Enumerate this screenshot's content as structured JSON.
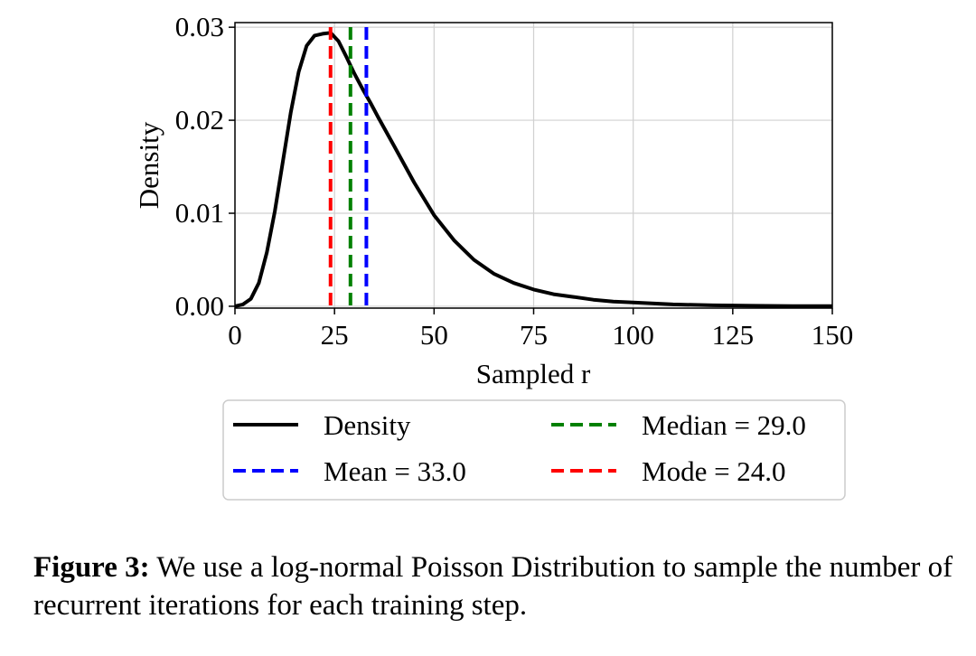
{
  "chart_data": {
    "type": "line",
    "xlabel": "Sampled r",
    "ylabel": "Density",
    "xlim": [
      0,
      150
    ],
    "ylim": [
      -0.0002,
      0.0305
    ],
    "xticks": [
      0,
      25,
      50,
      75,
      100,
      125,
      150
    ],
    "xtick_labels": [
      "0",
      "25",
      "50",
      "75",
      "100",
      "125",
      "150"
    ],
    "yticks": [
      0.0,
      0.01,
      0.02,
      0.03
    ],
    "ytick_labels": [
      "0.00",
      "0.01",
      "0.02",
      "0.03"
    ],
    "grid": true,
    "legend_placement": "below",
    "series": [
      {
        "name": "Density",
        "color": "#000000",
        "style": "solid",
        "x": [
          0,
          2,
          4,
          6,
          8,
          10,
          12,
          14,
          16,
          18,
          20,
          22,
          24,
          26,
          28,
          30,
          32,
          34,
          36,
          40,
          45,
          50,
          55,
          60,
          65,
          70,
          75,
          80,
          85,
          90,
          95,
          100,
          110,
          120,
          130,
          140,
          150
        ],
        "y": [
          0.0,
          0.0002,
          0.0008,
          0.0025,
          0.0058,
          0.0102,
          0.0155,
          0.0208,
          0.0252,
          0.028,
          0.0291,
          0.0293,
          0.0294,
          0.0285,
          0.0268,
          0.025,
          0.0234,
          0.0219,
          0.0203,
          0.0172,
          0.0133,
          0.0098,
          0.0071,
          0.005,
          0.0035,
          0.0025,
          0.0018,
          0.0013,
          0.001,
          0.0007,
          0.0005,
          0.0004,
          0.0002,
          0.0001,
          5e-05,
          2e-05,
          1e-05
        ]
      },
      {
        "name": "Mean = 33.0",
        "color": "#0000ff",
        "style": "dashed",
        "x": 33.0
      },
      {
        "name": "Median = 29.0",
        "color": "#008000",
        "style": "dashed",
        "x": 29.0
      },
      {
        "name": "Mode = 24.0",
        "color": "#ff0000",
        "style": "dashed",
        "x": 24.0
      }
    ],
    "legend": [
      {
        "label": "Density",
        "color": "#000000",
        "style": "solid"
      },
      {
        "label": "Mean = 33.0",
        "color": "#0000ff",
        "style": "dashed"
      },
      {
        "label": "Median = 29.0",
        "color": "#008000",
        "style": "dashed"
      },
      {
        "label": "Mode = 24.0",
        "color": "#ff0000",
        "style": "dashed"
      }
    ]
  },
  "caption": {
    "label": "Figure 3:",
    "text": "We use a log-normal Poisson Distribution to sample the number of recurrent iterations for each training step."
  }
}
